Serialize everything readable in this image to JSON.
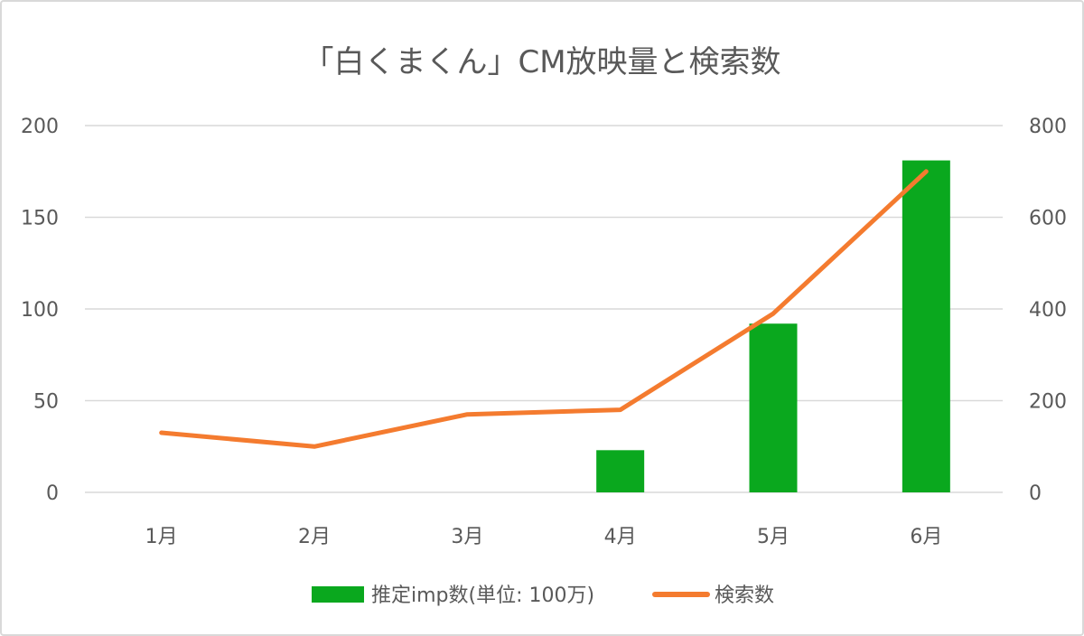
{
  "chart_data": {
    "type": "bar",
    "title": "「白くまくん」CM放映量と検索数",
    "categories": [
      "1月",
      "2月",
      "3月",
      "4月",
      "5月",
      "6月"
    ],
    "series": [
      {
        "name": "推定imp数(単位: 100万)",
        "type": "bar",
        "axis": "left",
        "color": "#0aa81e",
        "values": [
          0,
          0,
          0,
          23,
          92,
          181
        ]
      },
      {
        "name": "検索数",
        "type": "line",
        "axis": "right",
        "color": "#f47b2f",
        "values": [
          130,
          100,
          170,
          180,
          390,
          700
        ]
      }
    ],
    "y_left": {
      "min": 0,
      "max": 200,
      "ticks": [
        "0",
        "50",
        "100",
        "150",
        "200"
      ]
    },
    "y_right": {
      "min": 0,
      "max": 800,
      "ticks": [
        "0",
        "200",
        "400",
        "600",
        "800"
      ]
    },
    "grid": true,
    "legend_position": "bottom"
  }
}
